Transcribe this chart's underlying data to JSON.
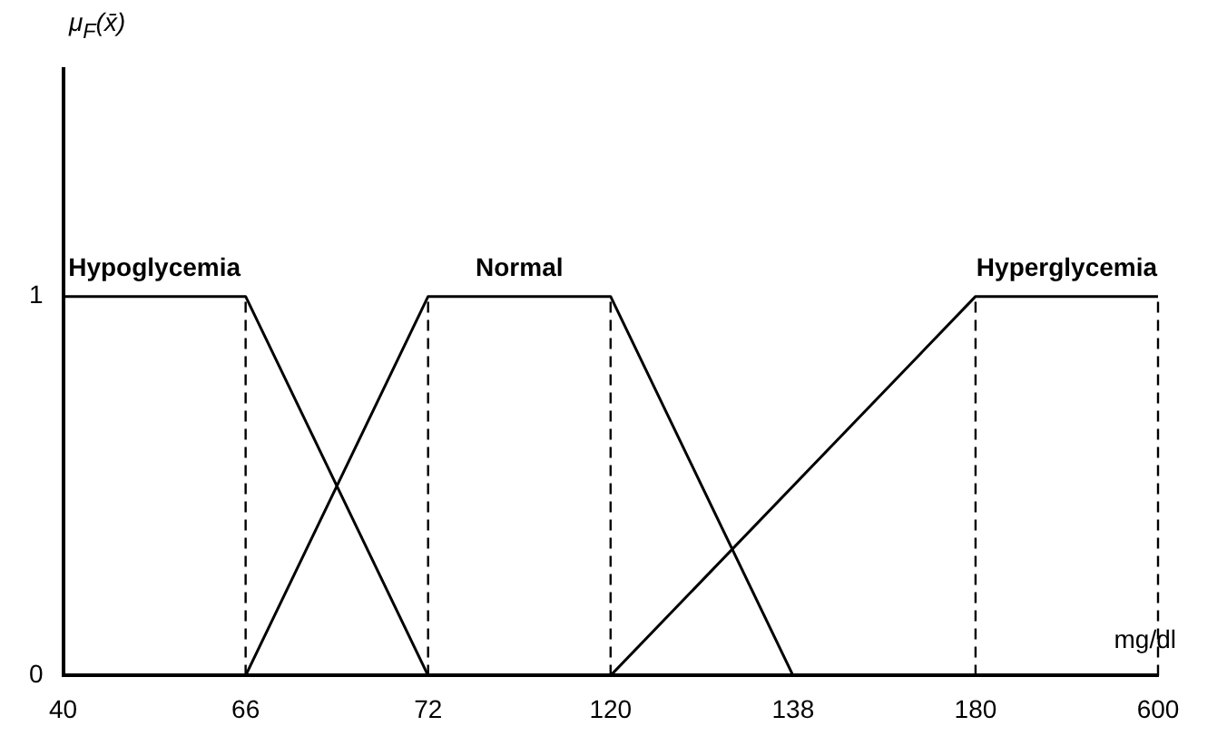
{
  "chart_data": {
    "type": "line",
    "ylabel": "μ$_{F}$(x̄)",
    "xlabel": "mg/dl",
    "categories": [
      "40",
      "66",
      "72",
      "120",
      "138",
      "180",
      "600"
    ],
    "series": [
      {
        "name": "Hypoglycemia",
        "color": "#000000",
        "values": [
          1,
          1,
          0,
          null,
          null,
          null,
          null
        ]
      },
      {
        "name": "Normal",
        "color": "#000000",
        "values": [
          null,
          0,
          1,
          1,
          0,
          null,
          null
        ]
      },
      {
        "name": "Hyperglycemia",
        "color": "#000000",
        "values": [
          null,
          null,
          null,
          0,
          null,
          1,
          1
        ]
      }
    ],
    "ylim": [
      0,
      1.6
    ],
    "yticks": [
      0,
      1
    ],
    "grid": false,
    "legend": false,
    "marker": "none",
    "line_style": "solid",
    "ref_lines": [
      {
        "axis": "x",
        "value": "66",
        "line_style": "dashed"
      },
      {
        "axis": "x",
        "value": "72",
        "line_style": "dashed"
      },
      {
        "axis": "x",
        "value": "120",
        "line_style": "dashed"
      },
      {
        "axis": "x",
        "value": "180",
        "line_style": "dashed"
      },
      {
        "axis": "x",
        "value": "600",
        "line_style": "dashed"
      }
    ]
  }
}
